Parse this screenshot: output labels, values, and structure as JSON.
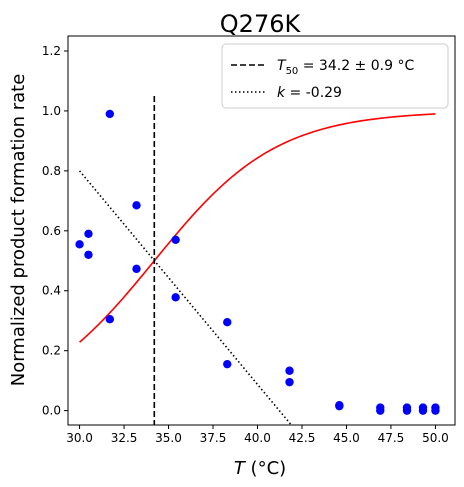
{
  "chart_data": {
    "type": "scatter",
    "title": "Q276K",
    "xlabel": {
      "italic": "T",
      "rest": " (°C)"
    },
    "ylabel": "Normalized product formation rate",
    "xlim": [
      29.35,
      51.1
    ],
    "ylim": [
      -0.048,
      1.25
    ],
    "x_ticks": [
      30.0,
      32.5,
      35.0,
      37.5,
      40.0,
      42.5,
      45.0,
      47.5,
      50.0
    ],
    "x_tick_labels": [
      "30.0",
      "32.5",
      "35.0",
      "37.5",
      "40.0",
      "42.5",
      "45.0",
      "47.5",
      "50.0"
    ],
    "y_ticks": [
      0.0,
      0.2,
      0.4,
      0.6,
      0.8,
      1.0,
      1.2
    ],
    "y_tick_labels": [
      "0.0",
      "0.2",
      "0.4",
      "0.6",
      "0.8",
      "1.0",
      "1.2"
    ],
    "grid": false,
    "legend_position": "top-right",
    "colors": {
      "points": "#0000ff",
      "fit": "#ff0000",
      "lines": "#000000"
    },
    "points": [
      {
        "x": 30.0,
        "y": 0.555
      },
      {
        "x": 30.5,
        "y": 0.59
      },
      {
        "x": 30.5,
        "y": 0.52
      },
      {
        "x": 31.7,
        "y": 0.99
      },
      {
        "x": 31.7,
        "y": 0.305
      },
      {
        "x": 33.2,
        "y": 0.685
      },
      {
        "x": 33.2,
        "y": 0.473
      },
      {
        "x": 35.4,
        "y": 0.57
      },
      {
        "x": 35.4,
        "y": 0.378
      },
      {
        "x": 38.3,
        "y": 0.295
      },
      {
        "x": 38.3,
        "y": 0.155
      },
      {
        "x": 41.8,
        "y": 0.133
      },
      {
        "x": 41.8,
        "y": 0.095
      },
      {
        "x": 44.6,
        "y": 0.018
      },
      {
        "x": 44.6,
        "y": 0.015
      },
      {
        "x": 46.9,
        "y": 0.01
      },
      {
        "x": 46.9,
        "y": 0.0
      },
      {
        "x": 48.4,
        "y": 0.01
      },
      {
        "x": 48.4,
        "y": 0.0
      },
      {
        "x": 49.3,
        "y": 0.01
      },
      {
        "x": 49.3,
        "y": 0.0
      },
      {
        "x": 50.0,
        "y": 0.01
      },
      {
        "x": 50.0,
        "y": 0.0
      }
    ],
    "fit_curve": {
      "type": "sigmoid",
      "T50": 34.2,
      "k": -0.29,
      "top": 1.0,
      "x_range": [
        30.0,
        50.0
      ]
    },
    "t50_line": {
      "x": 34.2,
      "y_range": [
        -0.048,
        1.05
      ]
    },
    "slope_line": {
      "x1": 30.0,
      "y1": 0.8,
      "x2": 41.9,
      "y2": -0.048
    },
    "legend": [
      {
        "style": "dashed",
        "prefix": "T",
        "subscript": "50",
        "suffix": " = 34.2 ± 0.9 °C"
      },
      {
        "style": "dotted",
        "prefix": "k",
        "subscript": "",
        "suffix": " = -0.29"
      }
    ]
  }
}
